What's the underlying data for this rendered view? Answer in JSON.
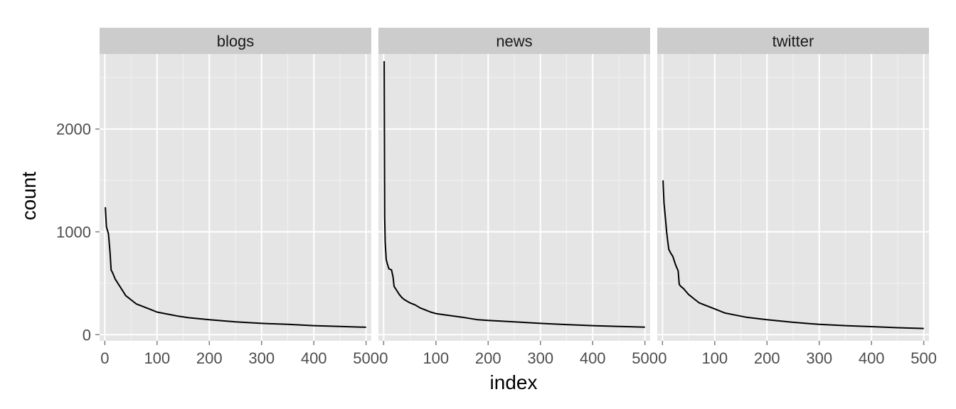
{
  "chart_data": {
    "type": "line",
    "xlabel": "index",
    "ylabel": "count",
    "xlim": [
      -10,
      510
    ],
    "ylim": [
      -60,
      2730
    ],
    "x_ticks": [
      0,
      100,
      200,
      300,
      400,
      500
    ],
    "y_ticks": [
      0,
      1000,
      2000
    ],
    "x_tick_labels": [
      "0",
      "100",
      "200",
      "300",
      "400",
      "500"
    ],
    "y_tick_labels": [
      "0",
      "1000",
      "2000"
    ],
    "grid": true,
    "colors": {
      "panel": "#e5e5e5",
      "strip": "#cccccc",
      "grid": "#ffffff",
      "line": "#000000"
    },
    "panels": [
      {
        "name": "blogs",
        "x": [
          1,
          3,
          7,
          10,
          12,
          15,
          20,
          25,
          30,
          35,
          40,
          45,
          50,
          60,
          70,
          80,
          90,
          100,
          120,
          140,
          160,
          200,
          250,
          300,
          350,
          400,
          450,
          500
        ],
        "y": [
          1240,
          1050,
          980,
          800,
          630,
          600,
          540,
          500,
          460,
          420,
          380,
          360,
          340,
          300,
          280,
          260,
          240,
          220,
          200,
          180,
          165,
          145,
          125,
          110,
          100,
          88,
          80,
          72
        ]
      },
      {
        "name": "news",
        "x": [
          1,
          2,
          3,
          5,
          7,
          10,
          15,
          18,
          20,
          25,
          30,
          35,
          40,
          50,
          60,
          70,
          80,
          90,
          100,
          120,
          150,
          180,
          200,
          250,
          300,
          350,
          400,
          450,
          500
        ],
        "y": [
          2660,
          1150,
          900,
          730,
          690,
          640,
          630,
          560,
          470,
          430,
          390,
          360,
          340,
          310,
          290,
          260,
          240,
          220,
          205,
          190,
          170,
          145,
          138,
          125,
          110,
          98,
          88,
          80,
          73
        ]
      },
      {
        "name": "twitter",
        "x": [
          1,
          3,
          5,
          8,
          10,
          12,
          15,
          20,
          25,
          30,
          32,
          35,
          40,
          45,
          50,
          55,
          60,
          70,
          80,
          90,
          100,
          120,
          140,
          160,
          200,
          250,
          300,
          350,
          400,
          450,
          500
        ],
        "y": [
          1500,
          1280,
          1170,
          1000,
          910,
          830,
          800,
          760,
          680,
          620,
          490,
          470,
          450,
          420,
          390,
          370,
          350,
          310,
          290,
          270,
          250,
          210,
          190,
          170,
          145,
          120,
          100,
          88,
          78,
          68,
          60
        ]
      }
    ]
  }
}
